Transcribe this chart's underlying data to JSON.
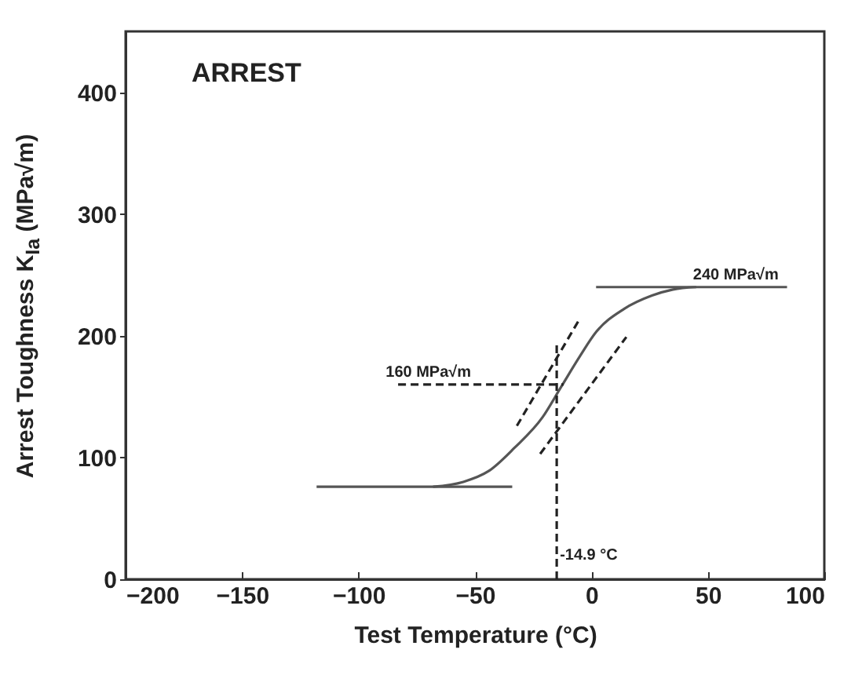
{
  "chart_data": {
    "type": "line",
    "xlabel": "Test Temperature (°C)",
    "ylabel": "Arrest Toughness K$_{Ia}$ (MPa√m)",
    "xlim": [
      -200,
      100
    ],
    "xticks": [
      -200,
      -150,
      -100,
      -50,
      0,
      50,
      100
    ],
    "ylim": [
      0,
      450
    ],
    "yticks": [
      0,
      100,
      200,
      300,
      400
    ],
    "grid": false,
    "marker": "none",
    "series": [
      {
        "color": "#555555",
        "line_style": "solid",
        "x": [
          -68,
          -55,
          -44,
          -33,
          -21,
          -13,
          -5,
          2,
          14,
          26,
          35,
          45
        ],
        "values": [
          76,
          80,
          89,
          108,
          133,
          158,
          183,
          203,
          222,
          233,
          238,
          240
        ]
      },
      {
        "color": "#555555",
        "line_style": "solid",
        "x": [
          -118,
          -34
        ],
        "values": [
          76,
          76
        ]
      },
      {
        "color": "#555555",
        "line_style": "solid",
        "x": [
          2,
          84
        ],
        "values": [
          240,
          240
        ]
      },
      {
        "color": "#222222",
        "line_style": "dashed",
        "x": [
          -32,
          -5
        ],
        "values": [
          126,
          214
        ]
      },
      {
        "color": "#222222",
        "line_style": "dashed",
        "x": [
          -22,
          15
        ],
        "values": [
          103,
          199
        ]
      },
      {
        "color": "#222222",
        "line_style": "dashed",
        "x": [
          -83,
          -12
        ],
        "values": [
          160,
          160
        ]
      },
      {
        "color": "#222222",
        "line_style": "dashed",
        "x": [
          -14.9,
          -14.9
        ],
        "values": [
          0,
          195
        ]
      }
    ],
    "annotations": [
      "ARREST",
      {
        "text": "160 MPa√m",
        "x": -70,
        "y": 160
      },
      {
        "text": "240 MPa√m",
        "x": 62,
        "y": 240
      },
      {
        "text": "-14.9 °C",
        "x": -14.9,
        "y": 20
      }
    ]
  }
}
